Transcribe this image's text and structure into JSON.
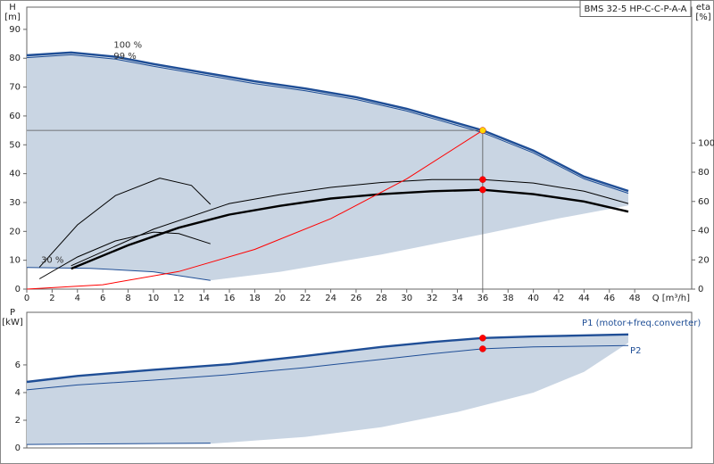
{
  "chart_data": [
    {
      "type": "line",
      "title": "BMS 32-5 HP-C-C-P-A-A",
      "y_label": "H",
      "y_unit": "[m]",
      "y2_label": "eta",
      "y2_unit": "[%]",
      "x_label": "Q [m³/h]",
      "xlim": [
        0,
        52.5
      ],
      "xticks": [
        0,
        2,
        4,
        6,
        8,
        10,
        12,
        14,
        16,
        18,
        20,
        22,
        24,
        26,
        28,
        30,
        32,
        34,
        36,
        38,
        40,
        42,
        44,
        46,
        48
      ],
      "ylim": [
        0,
        97.7
      ],
      "yticks": [
        0,
        10,
        20,
        30,
        40,
        50,
        60,
        70,
        80,
        90
      ],
      "y2lim": [
        0,
        193
      ],
      "y2ticks": [
        0,
        20,
        40,
        60,
        80,
        100
      ],
      "series": [
        {
          "style": "fill",
          "color": "#c9d5e3",
          "x": [
            0,
            3.5,
            7,
            10,
            14,
            18,
            22,
            26,
            30,
            34,
            36,
            40,
            44,
            47.5,
            47.5,
            42,
            36,
            28,
            20,
            14.5,
            10,
            5,
            0
          ],
          "values": [
            81,
            82,
            80.5,
            78,
            75,
            72,
            69.5,
            66.5,
            62.5,
            57.5,
            55,
            48,
            39,
            34,
            29,
            24.5,
            19,
            12,
            6,
            3,
            6,
            7.2,
            7.5
          ]
        },
        {
          "name": "100 %",
          "style": "thick",
          "color": "#1f4e96",
          "x": [
            0,
            3.5,
            7,
            10,
            14,
            18,
            22,
            26,
            30,
            34,
            36,
            40,
            44,
            47.5
          ],
          "values": [
            81,
            82,
            80.5,
            78,
            75,
            72,
            69.5,
            66.5,
            62.5,
            57.5,
            55,
            48,
            39,
            34
          ]
        },
        {
          "name": "99 %",
          "style": "thin",
          "color": "#1f4e96",
          "x": [
            0,
            3.5,
            7,
            10,
            14,
            18,
            22,
            26,
            30,
            34,
            36,
            40,
            44,
            47.5
          ],
          "values": [
            80.2,
            81.2,
            79.7,
            77.2,
            74.2,
            71.2,
            68.7,
            65.7,
            61.7,
            56.7,
            54.2,
            47.2,
            38.2,
            33.2
          ]
        },
        {
          "name": "30 %",
          "style": "thin",
          "color": "#1f4e96",
          "x": [
            0,
            5,
            10,
            14.5
          ],
          "values": [
            7.5,
            7.2,
            6,
            3
          ]
        },
        {
          "axis": "y2",
          "style": "thin",
          "color": "#000000",
          "x": [
            3.5,
            10,
            16,
            20,
            24,
            28,
            32,
            36,
            40,
            44,
            47.5
          ],
          "values": [
            16,
            41,
            58.6,
            64.7,
            69.6,
            73,
            75,
            75,
            72.6,
            67,
            58.6
          ]
        },
        {
          "axis": "y2",
          "style": "thick",
          "color": "#000000",
          "x": [
            3.5,
            8,
            12,
            16,
            20,
            24,
            28,
            32,
            36,
            40,
            44,
            47.5
          ],
          "values": [
            14,
            30,
            42,
            51,
            57,
            62,
            65,
            67,
            68,
            65,
            60,
            53
          ]
        },
        {
          "axis": "y2",
          "style": "thin",
          "color": "#000000",
          "x": [
            1,
            4,
            7,
            10.5,
            13,
            14.5
          ],
          "values": [
            15,
            44,
            64,
            76,
            71,
            58
          ]
        },
        {
          "axis": "y2",
          "style": "thin",
          "color": "#000000",
          "x": [
            1,
            4,
            7,
            10,
            12,
            14.5
          ],
          "values": [
            7,
            22,
            33,
            39,
            38,
            31
          ]
        },
        {
          "style": "thin",
          "color": "#ff0000",
          "x": [
            0,
            6,
            12,
            18,
            24,
            30,
            36
          ],
          "values": [
            0,
            1.5,
            6.1,
            13.75,
            24.4,
            38.2,
            55
          ]
        }
      ],
      "markers": [
        {
          "x": 36,
          "y": 55,
          "color": "#ffd700",
          "guides": true
        },
        {
          "x": 36,
          "y": 75,
          "axis": "y2",
          "color": "#ff0000"
        },
        {
          "x": 36,
          "y": 68,
          "axis": "y2",
          "color": "#ff0000"
        }
      ]
    },
    {
      "type": "line",
      "y_label": "P",
      "y_unit": "[kW]",
      "xlim": [
        0,
        52.5
      ],
      "ylim": [
        0,
        9.8
      ],
      "yticks": [
        0,
        2,
        4,
        6
      ],
      "series": [
        {
          "style": "fill",
          "color": "#c9d5e3",
          "x": [
            0,
            4,
            10,
            16,
            22,
            28,
            32,
            36,
            40,
            47.5,
            47.5,
            44,
            40,
            34,
            28,
            22,
            14.5,
            0
          ],
          "values": [
            4.77,
            5.2,
            5.65,
            6.05,
            6.65,
            7.3,
            7.65,
            7.94,
            8.05,
            8.2,
            7.6,
            5.5,
            4,
            2.6,
            1.5,
            0.8,
            0.3,
            0.25
          ]
        },
        {
          "name": "P1 (motor+freq.converter)",
          "style": "thick",
          "color": "#1f4e96",
          "x": [
            0,
            4,
            10,
            16,
            22,
            28,
            32,
            36,
            40,
            47.5
          ],
          "values": [
            4.77,
            5.2,
            5.65,
            6.05,
            6.65,
            7.3,
            7.65,
            7.94,
            8.05,
            8.2
          ]
        },
        {
          "name": "P2",
          "style": "thin",
          "color": "#1f4e96",
          "x": [
            0,
            4,
            10,
            16,
            22,
            28,
            32,
            36,
            40,
            47.5
          ],
          "values": [
            4.2,
            4.55,
            4.9,
            5.3,
            5.8,
            6.4,
            6.8,
            7.16,
            7.3,
            7.4
          ]
        },
        {
          "style": "thin",
          "color": "#1f4e96",
          "x": [
            0,
            14.5
          ],
          "values": [
            0.25,
            0.35
          ]
        }
      ],
      "markers": [
        {
          "x": 36,
          "y": 7.94,
          "color": "#ff0000"
        },
        {
          "x": 36,
          "y": 7.16,
          "color": "#ff0000"
        }
      ]
    }
  ]
}
